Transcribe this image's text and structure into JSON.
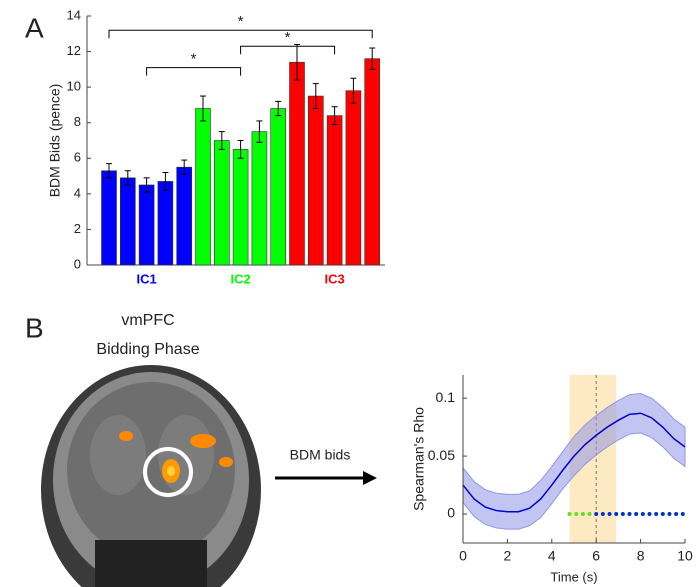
{
  "panel_labels": [
    "A",
    "B"
  ],
  "brain": {
    "title": "vmPFC",
    "subtitle": "Bidding Phase"
  },
  "arrow_label": "BDM bids",
  "chart_data": [
    {
      "type": "bar",
      "ylabel": "BDM Bids (pence)",
      "ylim": [
        0,
        14
      ],
      "yticks": [
        0,
        2,
        4,
        6,
        8,
        10,
        12,
        14
      ],
      "series": [
        {
          "name": "IC1",
          "color": "#0000ff",
          "values": [
            5.3,
            4.9,
            4.5,
            4.7,
            5.5
          ],
          "errors": [
            0.4,
            0.4,
            0.4,
            0.5,
            0.4
          ]
        },
        {
          "name": "IC2",
          "color": "#00ff00",
          "values": [
            8.8,
            7.0,
            6.5,
            7.5,
            8.8
          ],
          "errors": [
            0.7,
            0.5,
            0.5,
            0.6,
            0.4
          ]
        },
        {
          "name": "IC3",
          "color": "#ff0000",
          "values": [
            11.4,
            9.5,
            8.4,
            9.8,
            11.6
          ],
          "errors": [
            1.0,
            0.7,
            0.5,
            0.7,
            0.6
          ]
        }
      ],
      "significance": [
        {
          "from": 0,
          "to": 14,
          "y": 13.2,
          "label": "*"
        },
        {
          "from": 2,
          "to": 7,
          "y": 11.1,
          "label": "*"
        },
        {
          "from": 7,
          "to": 12,
          "y": 12.3,
          "label": "*"
        }
      ]
    },
    {
      "type": "line",
      "xlabel": "Time (s)",
      "ylabel": "Spearman's Rho",
      "xlim": [
        0,
        10
      ],
      "xticks": [
        0,
        2,
        4,
        6,
        8,
        10
      ],
      "ylim": [
        -0.025,
        0.12
      ],
      "yticks": [
        0,
        0.05,
        0.1
      ],
      "highlight": [
        4.8,
        6.9
      ],
      "highlight_color": "#fde9c2",
      "vline": 6,
      "x": [
        0,
        0.5,
        1,
        1.5,
        2,
        2.5,
        3,
        3.5,
        4,
        4.5,
        5,
        5.5,
        6,
        6.5,
        7,
        7.5,
        8,
        8.5,
        9,
        9.5,
        10
      ],
      "series": [
        {
          "color": "#0000cc",
          "band_color": "#9096e8",
          "values": [
            0.025,
            0.013,
            0.006,
            0.003,
            0.002,
            0.002,
            0.005,
            0.013,
            0.025,
            0.038,
            0.05,
            0.06,
            0.068,
            0.075,
            0.081,
            0.086,
            0.087,
            0.083,
            0.075,
            0.065,
            0.058
          ],
          "errors": [
            0.015,
            0.015,
            0.015,
            0.015,
            0.015,
            0.015,
            0.015,
            0.016,
            0.016,
            0.016,
            0.017,
            0.017,
            0.017,
            0.017,
            0.017,
            0.017,
            0.017,
            0.017,
            0.017,
            0.017,
            0.017
          ]
        }
      ],
      "sig_dots": [
        {
          "color": "#66dd22",
          "y": 0,
          "x": [
            4.8,
            5.1,
            5.4,
            5.7
          ]
        },
        {
          "color": "#0033cc",
          "y": 0,
          "x": [
            6.0,
            6.3,
            6.6,
            6.9,
            7.2,
            7.5,
            7.8,
            8.1,
            8.4,
            8.7,
            9.0,
            9.3,
            9.6,
            9.9
          ]
        }
      ]
    }
  ]
}
